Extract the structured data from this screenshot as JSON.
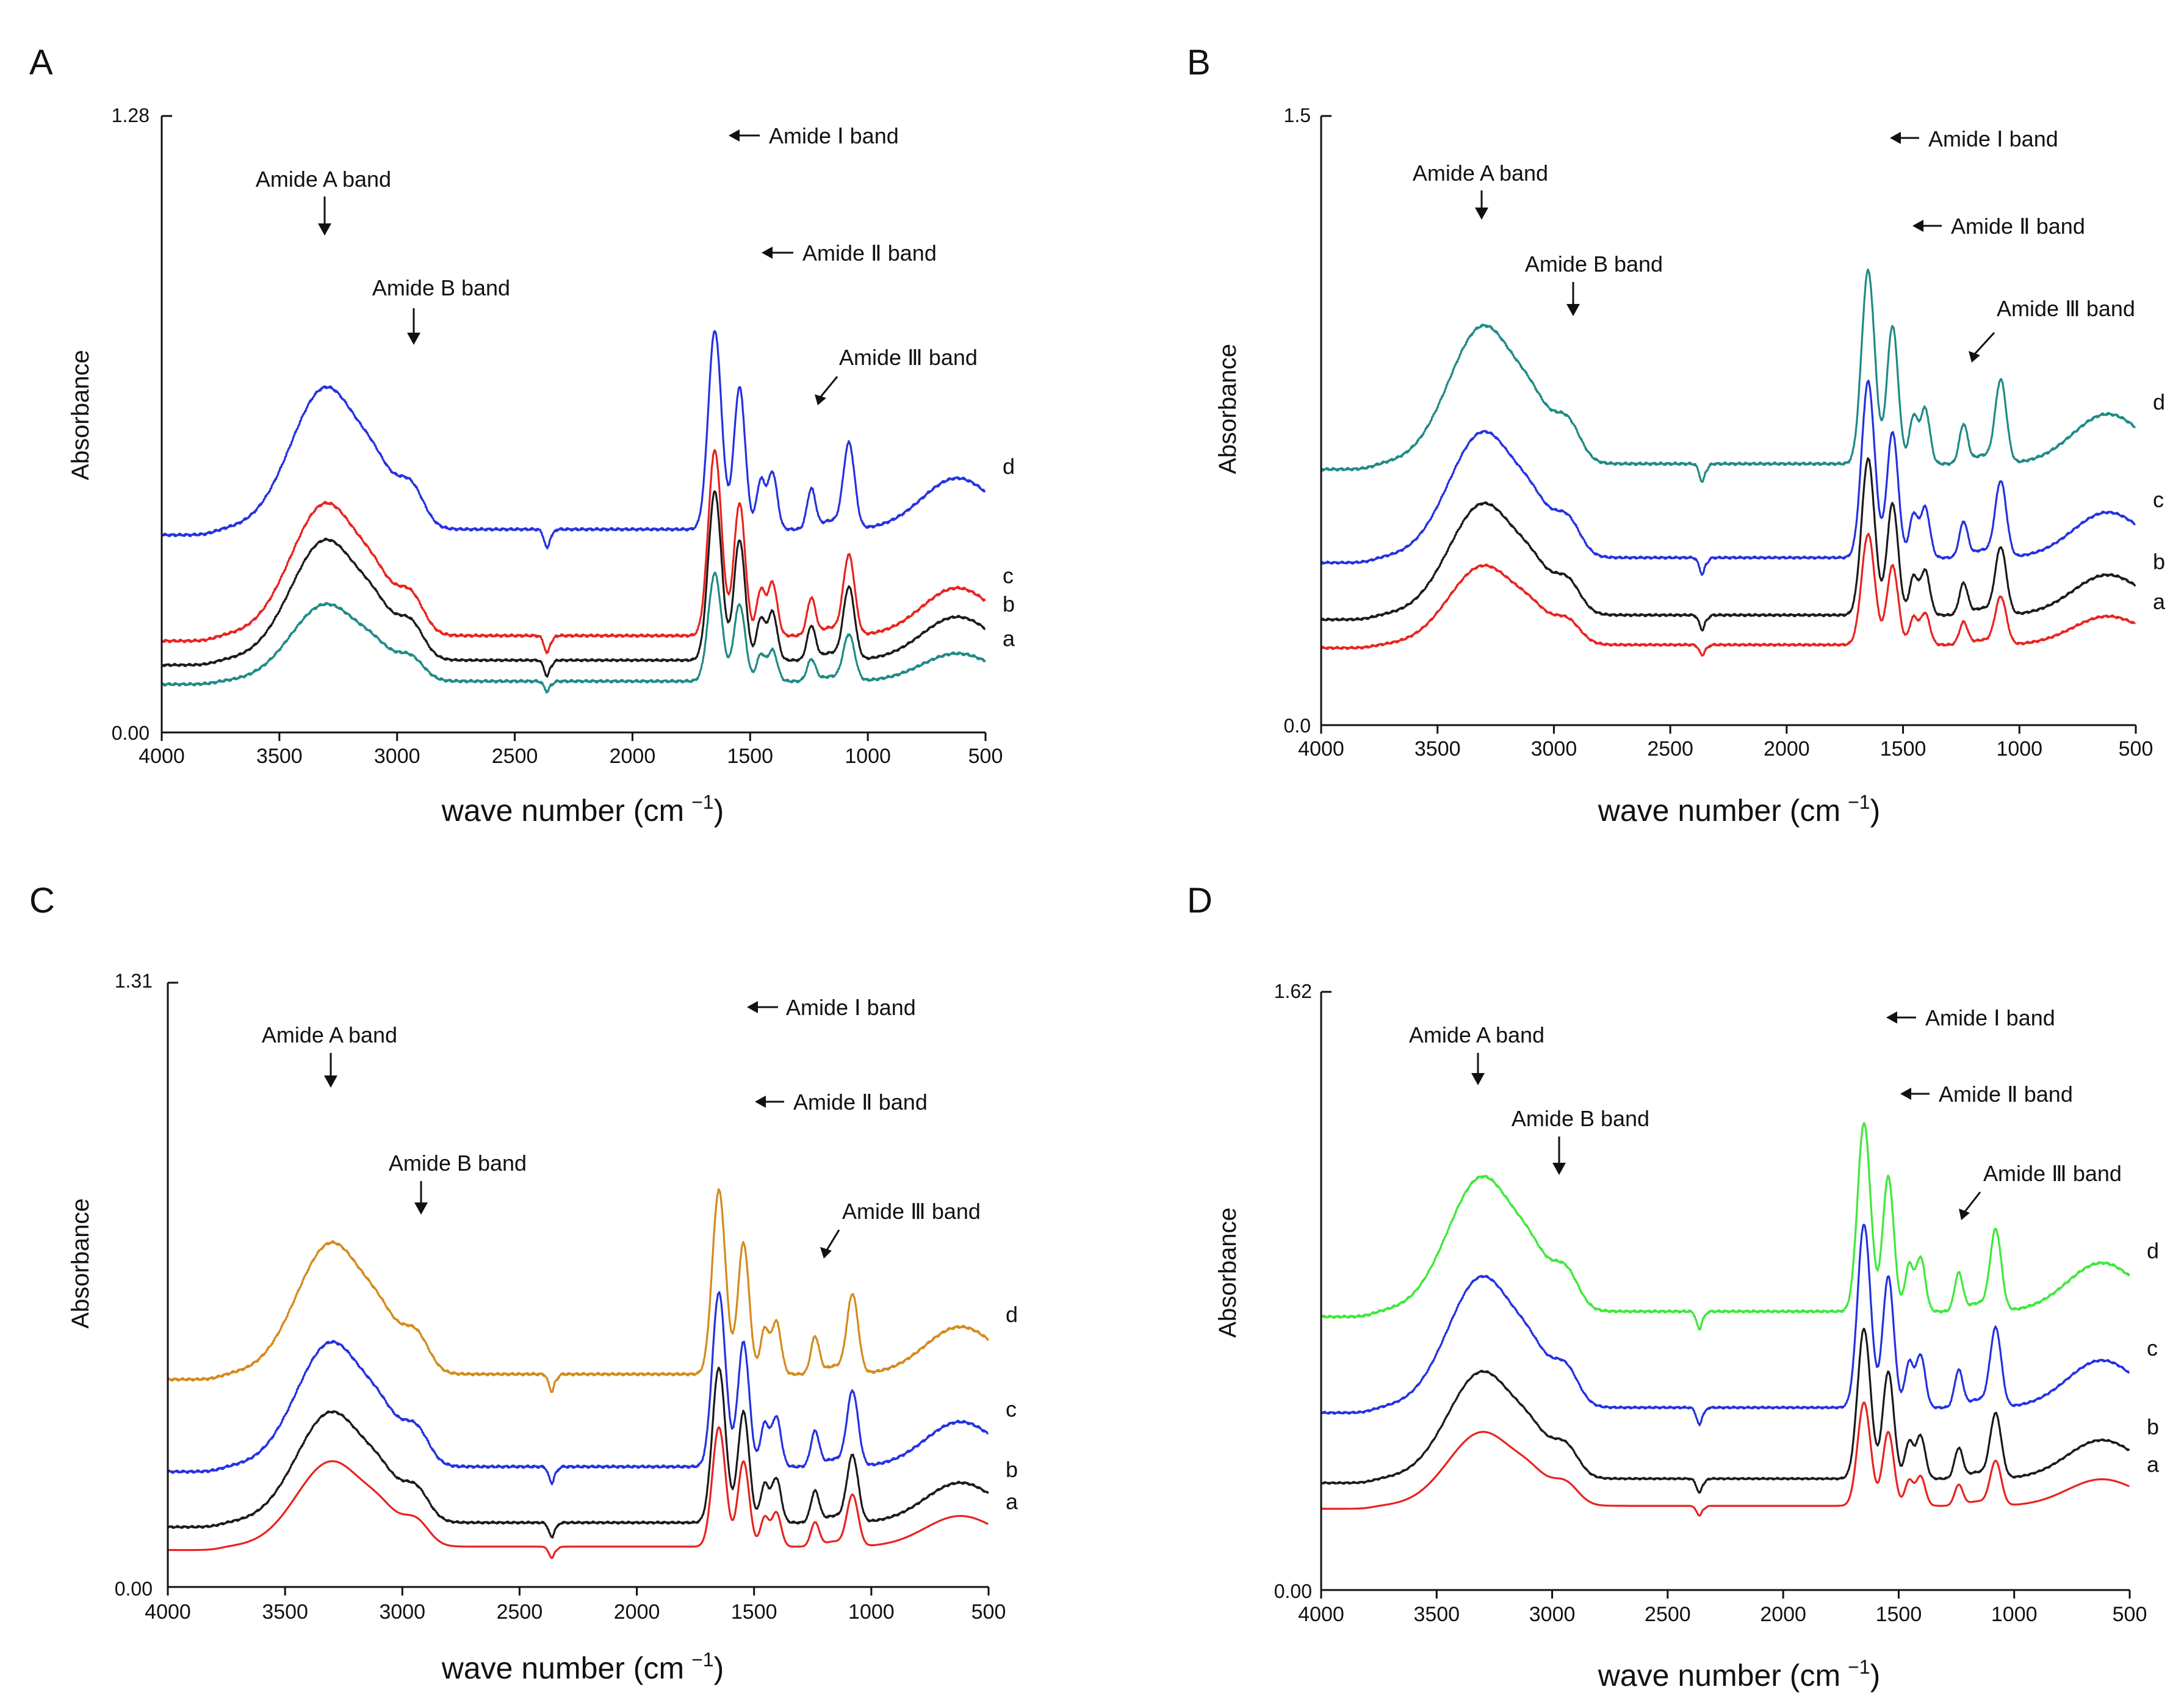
{
  "figure": {
    "x_label": "wave number (cm",
    "x_label_sup": "−1",
    "x_label_end": ")",
    "y_label": "Absorbance",
    "x_ticks": [
      4000,
      3500,
      3000,
      2500,
      2000,
      1500,
      1000,
      500
    ],
    "x_range": [
      4000,
      500
    ]
  },
  "colors": {
    "black": "#1a1a1a",
    "red": "#e8231f",
    "blue": "#2431e0",
    "teal": "#1f8a85",
    "orange": "#d48a1c",
    "green": "#3ee83a"
  },
  "chart_data": [
    {
      "panel": "A",
      "type": "line",
      "y_top_label": "1.28",
      "y_bottom_label": "0.00",
      "ylim": [
        0,
        1.28
      ],
      "annotations": {
        "amide_a": "Amide A band",
        "amide_b": "Amide B band",
        "amide_1": "Amide Ⅰ  band",
        "amide_2": "Amide Ⅱ band",
        "amide_3": "Amide Ⅲ band"
      },
      "series": [
        {
          "name": "a",
          "color": "#1f8a85",
          "offset": 0.1,
          "scale": 0.32,
          "wiggle": 0.003
        },
        {
          "name": "b",
          "color": "#1a1a1a",
          "offset": 0.14,
          "scale": 0.5,
          "wiggle": 0.0025
        },
        {
          "name": "c",
          "color": "#e8231f",
          "offset": 0.19,
          "scale": 0.55,
          "wiggle": 0.003
        },
        {
          "name": "d",
          "color": "#2431e0",
          "offset": 0.41,
          "scale": 0.59,
          "wiggle": 0.003
        }
      ]
    },
    {
      "panel": "B",
      "type": "line",
      "y_top_label": "1.5",
      "y_bottom_label": "0.0",
      "ylim": [
        0,
        1.5
      ],
      "annotations": {
        "amide_a": "Amide A band",
        "amide_b": "Amide B band",
        "amide_1": "Amide Ⅰ  band",
        "amide_2": "Amide Ⅱ band",
        "amide_3": "Amide Ⅲ band"
      },
      "series": [
        {
          "name": "a",
          "color": "#e8231f",
          "offset": 0.19,
          "scale": 0.39,
          "wiggle": 0.003
        },
        {
          "name": "b",
          "color": "#1a1a1a",
          "offset": 0.26,
          "scale": 0.55,
          "wiggle": 0.003
        },
        {
          "name": "c",
          "color": "#2431e0",
          "offset": 0.4,
          "scale": 0.62,
          "wiggle": 0.003
        },
        {
          "name": "d",
          "color": "#1f8a85",
          "offset": 0.63,
          "scale": 0.68,
          "wiggle": 0.0035
        }
      ]
    },
    {
      "panel": "C",
      "type": "line",
      "y_top_label": "1.31",
      "y_bottom_label": "0.00",
      "ylim": [
        0,
        1.31
      ],
      "annotations": {
        "amide_a": "Amide A band",
        "amide_b": "Amide B band",
        "amide_1": "Amide Ⅰ  band",
        "amide_2": "Amide Ⅱ band",
        "amide_3": "Amide Ⅲ band"
      },
      "series": [
        {
          "name": "a",
          "color": "#e8231f",
          "offset": 0.08,
          "scale": 0.37,
          "wiggle": 0.0
        },
        {
          "name": "b",
          "color": "#1a1a1a",
          "offset": 0.13,
          "scale": 0.48,
          "wiggle": 0.0025
        },
        {
          "name": "c",
          "color": "#2431e0",
          "offset": 0.25,
          "scale": 0.54,
          "wiggle": 0.003
        },
        {
          "name": "d",
          "color": "#d48a1c",
          "offset": 0.45,
          "scale": 0.57,
          "wiggle": 0.003
        }
      ]
    },
    {
      "panel": "D",
      "type": "line",
      "y_top_label": "1.62",
      "y_bottom_label": "0.00",
      "ylim": [
        0,
        1.62
      ],
      "annotations": {
        "amide_a": "Amide A band",
        "amide_b": "Amide B band",
        "amide_1": "Amide Ⅰ  band",
        "amide_2": "Amide Ⅱ band",
        "amide_3": "Amide Ⅲ band"
      },
      "series": [
        {
          "name": "a",
          "color": "#e8231f",
          "offset": 0.22,
          "scale": 0.4,
          "wiggle": 0.0
        },
        {
          "name": "b",
          "color": "#1a1a1a",
          "offset": 0.29,
          "scale": 0.58,
          "wiggle": 0.0025
        },
        {
          "name": "c",
          "color": "#2431e0",
          "offset": 0.48,
          "scale": 0.71,
          "wiggle": 0.003
        },
        {
          "name": "d",
          "color": "#3ee83a",
          "offset": 0.74,
          "scale": 0.73,
          "wiggle": 0.0035
        }
      ]
    }
  ]
}
